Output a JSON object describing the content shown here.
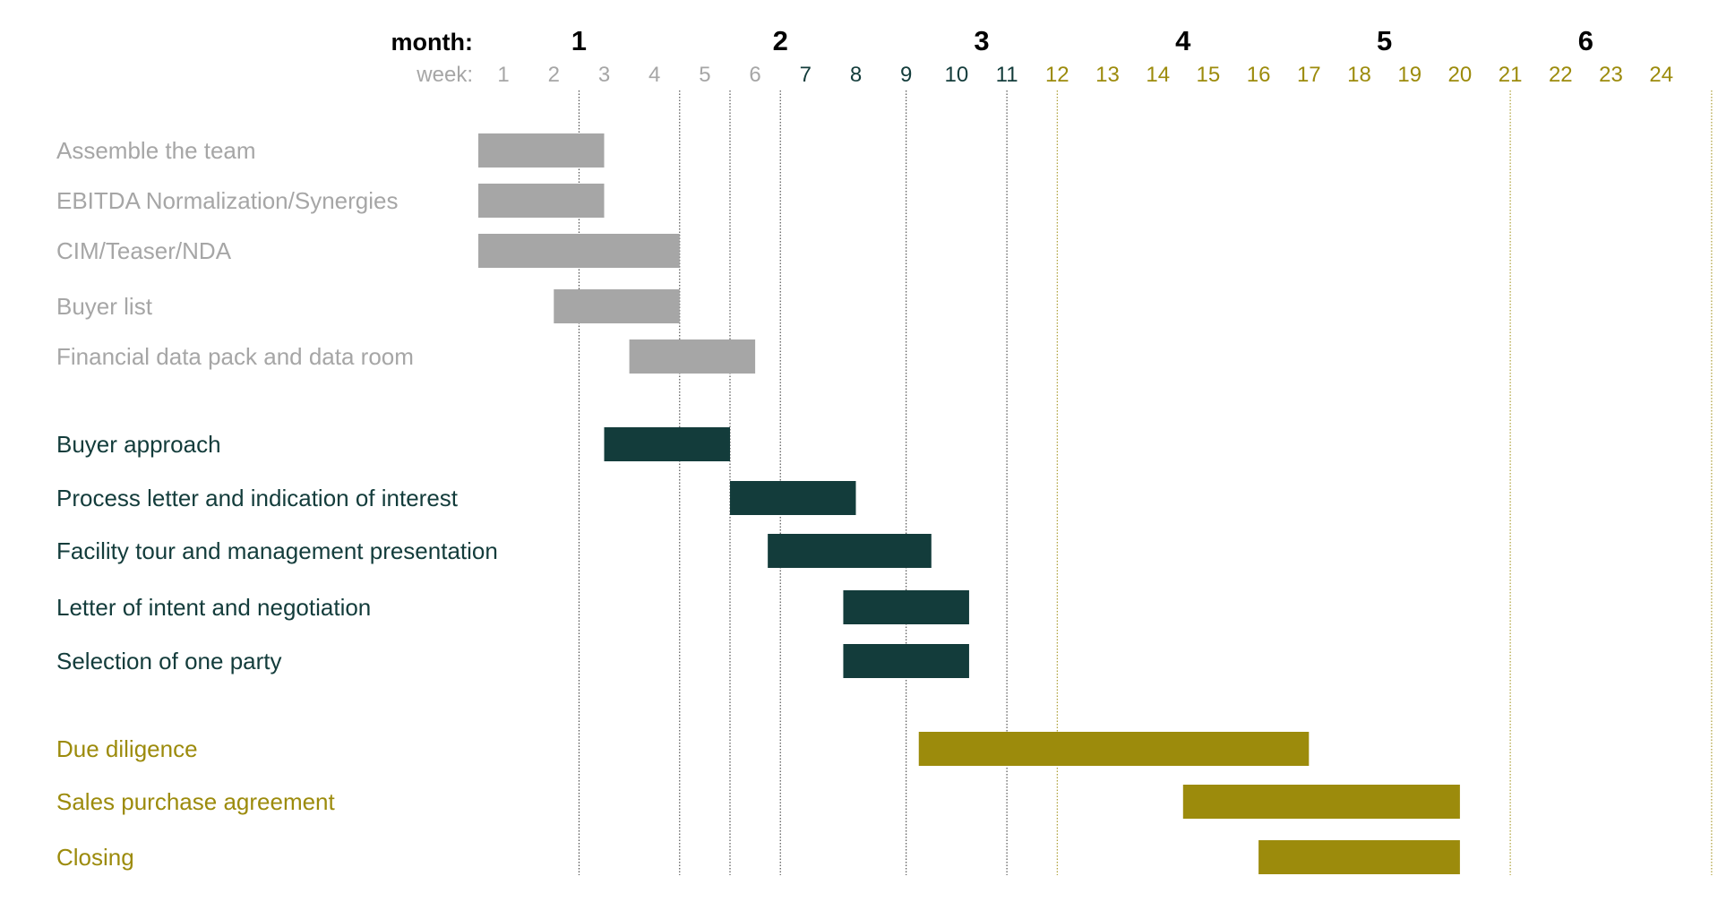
{
  "chart_data": {
    "type": "gantt",
    "month_axis_label": "month:",
    "week_axis_label": "week:",
    "months": [
      {
        "label": "1",
        "start_week": 1,
        "end_week": 4
      },
      {
        "label": "2",
        "start_week": 5,
        "end_week": 8
      },
      {
        "label": "3",
        "start_week": 9,
        "end_week": 12
      },
      {
        "label": "4",
        "start_week": 13,
        "end_week": 16
      },
      {
        "label": "5",
        "start_week": 17,
        "end_week": 20
      },
      {
        "label": "6",
        "start_week": 21,
        "end_week": 24
      }
    ],
    "weeks": [
      "1",
      "2",
      "3",
      "4",
      "5",
      "6",
      "7",
      "8",
      "9",
      "10",
      "11",
      "12",
      "13",
      "14",
      "15",
      "16",
      "17",
      "18",
      "19",
      "20",
      "21",
      "22",
      "23",
      "24"
    ],
    "week_label_groups": [
      {
        "from_week": 1,
        "to_week": 6,
        "color": "#a6a6a6"
      },
      {
        "from_week": 7,
        "to_week": 11,
        "color": "#133c3b"
      },
      {
        "from_week": 12,
        "to_week": 24,
        "color": "#9c8b0c"
      }
    ],
    "guide_lines_at_week_end": [
      2,
      4,
      5,
      6,
      8.5,
      10.5,
      11.5,
      20.5,
      24.5
    ],
    "groups": [
      {
        "color": "#a6a6a6",
        "tasks": [
          {
            "label": "Assemble the team",
            "start_week": 1,
            "end_week": 2.5
          },
          {
            "label": "EBITDA Normalization/Synergies",
            "start_week": 1,
            "end_week": 2.5
          },
          {
            "label": "CIM/Teaser/NDA",
            "start_week": 1,
            "end_week": 4
          },
          {
            "label": "Buyer list",
            "start_week": 2.5,
            "end_week": 4
          },
          {
            "label": "Financial data pack and data room",
            "start_week": 4,
            "end_week": 5.5
          }
        ]
      },
      {
        "color": "#133c3b",
        "tasks": [
          {
            "label": "Buyer approach",
            "start_week": 3.5,
            "end_week": 5
          },
          {
            "label": "Process letter and indication of interest",
            "start_week": 6,
            "end_week": 7.5
          },
          {
            "label": "Facility tour and management presentation",
            "start_week": 6.75,
            "end_week": 9
          },
          {
            "label": "Letter of intent and negotiation",
            "start_week": 8.25,
            "end_week": 9.75
          },
          {
            "label": "Selection of one party",
            "start_week": 8.25,
            "end_week": 9.75
          }
        ]
      },
      {
        "color": "#9c8b0c",
        "tasks": [
          {
            "label": "Due diligence",
            "start_week": 9.75,
            "end_week": 16.5
          },
          {
            "label": "Sales purchase agreement",
            "start_week": 15,
            "end_week": 19.5
          },
          {
            "label": "Closing",
            "start_week": 16.5,
            "end_week": 19.5
          }
        ]
      }
    ],
    "title": "",
    "xlabel": "",
    "ylabel": ""
  }
}
